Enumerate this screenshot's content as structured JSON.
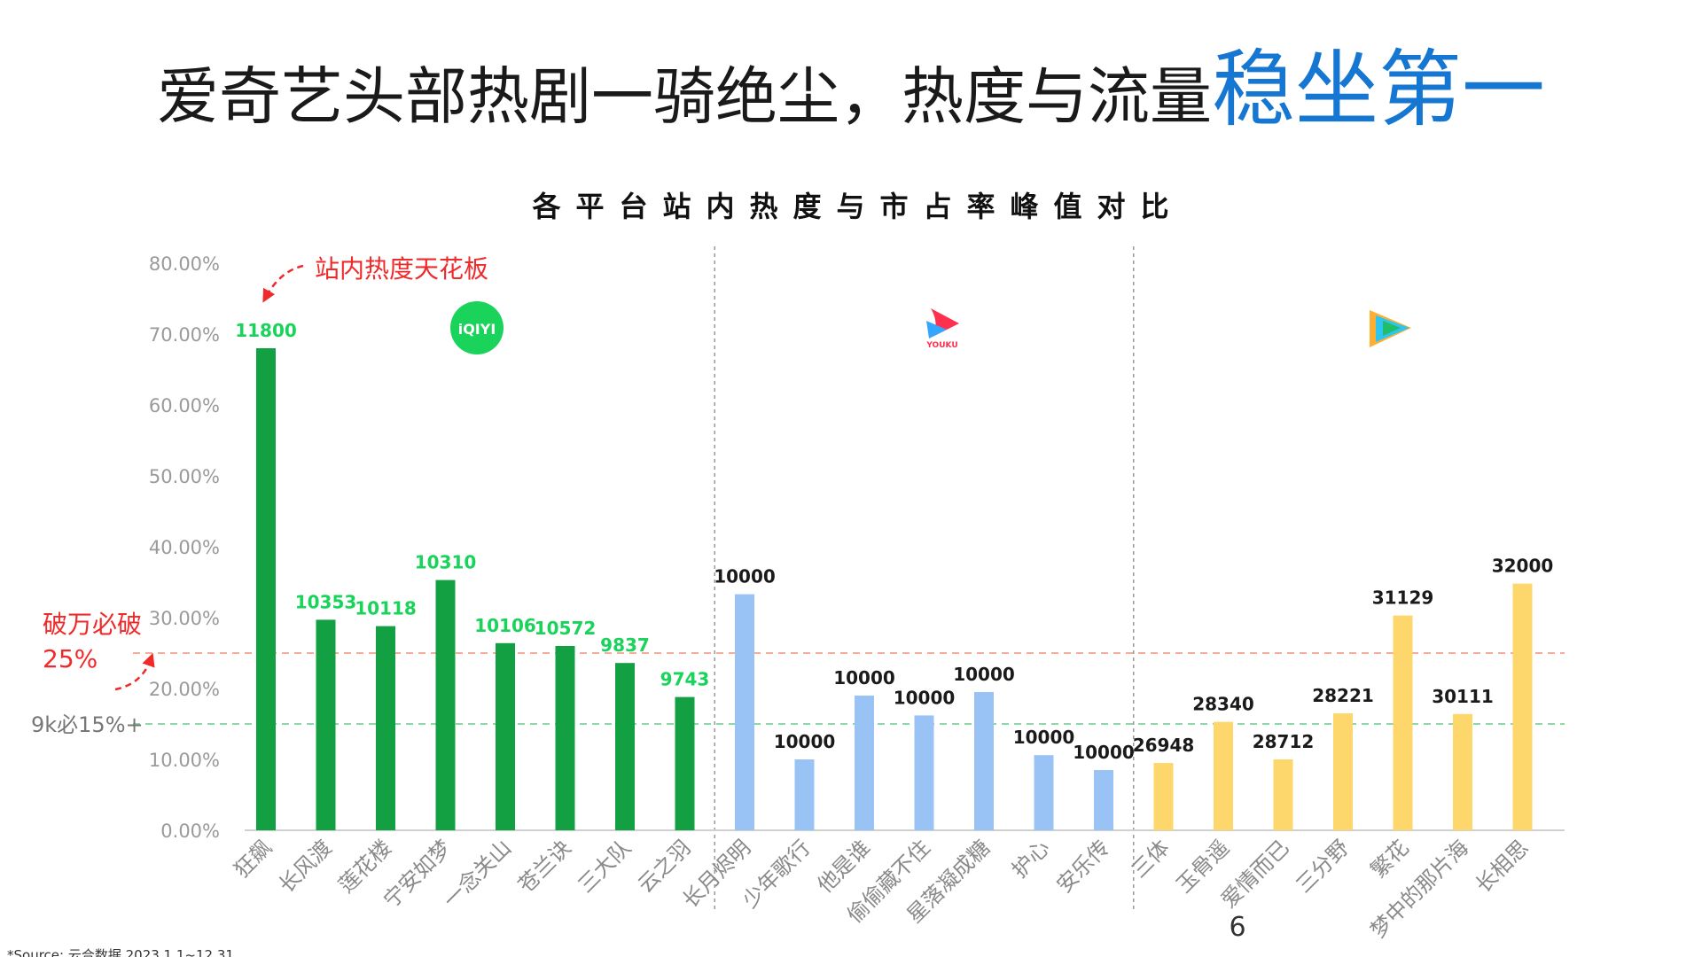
{
  "headline": {
    "main": "爱奇艺头部热剧一骑绝尘，热度与流量",
    "highlight": "稳坐第一"
  },
  "chart_data": {
    "type": "bar",
    "title": "各平台站内热度与市占率峰值对比",
    "ylim": [
      0,
      80
    ],
    "y_ticks": [
      "0.00%",
      "10.00%",
      "20.00%",
      "30.00%",
      "40.00%",
      "50.00%",
      "60.00%",
      "70.00%",
      "80.00%"
    ],
    "grid": false,
    "platforms": [
      {
        "logo": "iQIYI",
        "color": "#13a043",
        "label_color": "#19d35a"
      },
      {
        "logo": "YOUKU",
        "color": "#98c3f4",
        "label_color": "#1a1a1a"
      },
      {
        "logo": "tencent-video-icon",
        "color": "#fdd76b",
        "label_color": "#1a1a1a"
      }
    ],
    "series": [
      {
        "platform": 0,
        "categories": [
          "狂飙",
          "长风渡",
          "莲花楼",
          "宁安如梦",
          "一念关山",
          "苍兰诀",
          "三大队",
          "云之羽"
        ],
        "values": [
          68.0,
          29.7,
          28.8,
          35.3,
          26.4,
          26.0,
          23.6,
          18.8
        ],
        "labels": [
          "11800",
          "10353",
          "10118",
          "10310",
          "10106",
          "10572",
          "9837",
          "9743"
        ]
      },
      {
        "platform": 1,
        "categories": [
          "长月烬明",
          "少年歌行",
          "他是谁",
          "偷偷藏不住",
          "星落凝成糖",
          "护心",
          "安乐传"
        ],
        "values": [
          33.3,
          10.0,
          19.0,
          16.2,
          19.5,
          10.6,
          8.5
        ],
        "labels": [
          "10000",
          "10000",
          "10000",
          "10000",
          "10000",
          "10000",
          "10000"
        ]
      },
      {
        "platform": 2,
        "categories": [
          "三体",
          "玉骨遥",
          "爱情而已",
          "三分野",
          "繁花",
          "梦中的那片海",
          "长相思"
        ],
        "values": [
          9.5,
          15.3,
          10.0,
          16.5,
          30.3,
          16.4,
          34.8
        ],
        "labels": [
          "26948",
          "28340",
          "28712",
          "28221",
          "31129",
          "30111",
          "32000"
        ]
      }
    ],
    "reference_lines": [
      {
        "value": 25,
        "color": "#f5a089",
        "label": [
          "破万必破",
          "25%"
        ],
        "label_color": "#f02a2a"
      },
      {
        "value": 15,
        "color": "#7ed39a",
        "label": [
          "9k必15%+"
        ],
        "label_color": "#777777"
      }
    ],
    "annotation": {
      "text": "站内热度天花板",
      "color": "#f02a2a"
    }
  },
  "source": "*Source:  云合数据  2023.1.1~12.31",
  "page_number": "6"
}
